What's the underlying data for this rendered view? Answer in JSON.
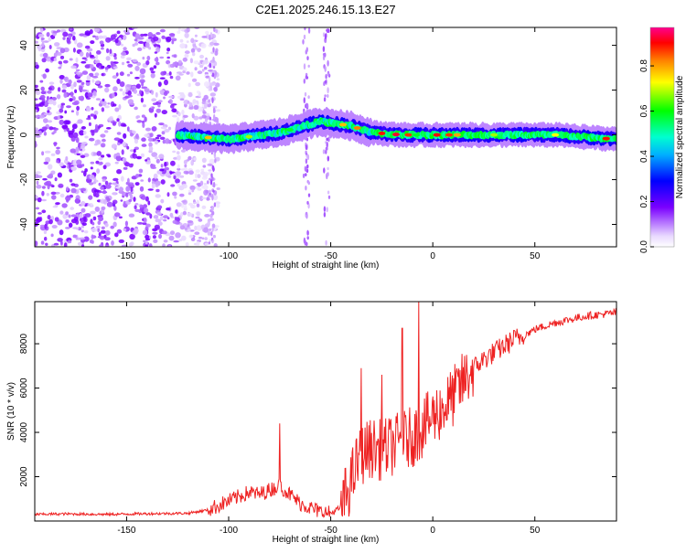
{
  "page_title": "C2E1.2025.246.15.13.E27",
  "chart_data": [
    {
      "type": "heatmap",
      "title": "C2E1.2025.246.15.13.E27",
      "xlabel": "Height of straight line (km)",
      "ylabel": "Frequency (Hz)",
      "xlim": [
        -195,
        90
      ],
      "ylim": [
        -50,
        48
      ],
      "x_ticks": [
        -150,
        -100,
        -50,
        0,
        50
      ],
      "y_ticks": [
        -40,
        -20,
        0,
        20,
        40
      ],
      "colorbar": {
        "label": "Normalized spectral amplitude",
        "range": [
          0,
          0.97
        ],
        "ticks": [
          0.0,
          0.2,
          0.4,
          0.6,
          0.8
        ],
        "tick_labels": [
          "0.0",
          "0.2",
          "0.4",
          "0.6",
          "0.8"
        ],
        "colormap": "rainbow (white → purple → blue → cyan → green → yellow → orange → red → pink)"
      },
      "features": [
        {
          "name": "Scattered noise",
          "x_range": [
            -195,
            -105
          ],
          "y_range": [
            -50,
            48
          ],
          "amplitude": 0.15
        },
        {
          "name": "Ridge signal",
          "x_range": [
            -125,
            90
          ],
          "center_freq_hz": [
            [
              -125,
              0
            ],
            [
              -100,
              -2
            ],
            [
              -75,
              1
            ],
            [
              -55,
              6
            ],
            [
              -40,
              4
            ],
            [
              -30,
              1
            ],
            [
              -15,
              0
            ],
            [
              0,
              0
            ],
            [
              30,
              0
            ],
            [
              60,
              0
            ],
            [
              90,
              -2
            ]
          ],
          "peak_amplitude": 0.95
        }
      ]
    },
    {
      "type": "line",
      "xlabel": "Height of straight line (km)",
      "ylabel": "SNR (10 * v/v)",
      "xlim": [
        -195,
        90
      ],
      "ylim": [
        0,
        9900
      ],
      "x_ticks": [
        -150,
        -100,
        -50,
        0,
        50
      ],
      "y_ticks": [
        2000,
        4000,
        6000,
        8000
      ],
      "series": [
        {
          "name": "SNR",
          "color": "#ee2222",
          "x": [
            -195,
            -180,
            -160,
            -140,
            -120,
            -110,
            -105,
            -100,
            -95,
            -90,
            -85,
            -80,
            -75,
            -70,
            -65,
            -60,
            -55,
            -50,
            -45,
            -40,
            -37,
            -35,
            -30,
            -25,
            -20,
            -15,
            -10,
            -5,
            0,
            5,
            10,
            15,
            20,
            25,
            30,
            35,
            40,
            45,
            50,
            55,
            60,
            65,
            70,
            75,
            80,
            85,
            90
          ],
          "values": [
            300,
            320,
            300,
            330,
            350,
            500,
            700,
            900,
            1100,
            1300,
            1200,
            1400,
            1600,
            1200,
            800,
            600,
            400,
            350,
            600,
            1800,
            2600,
            3000,
            3300,
            3200,
            3400,
            3600,
            3800,
            4200,
            4700,
            5100,
            5600,
            6300,
            6900,
            7300,
            7600,
            7900,
            8200,
            8400,
            8650,
            8800,
            8950,
            9050,
            9150,
            9250,
            9300,
            9350,
            9400
          ]
        }
      ],
      "annotations_peaks": [
        {
          "x": -75,
          "value": 4400
        },
        {
          "x": -35,
          "value": 6900
        },
        {
          "x": -25,
          "value": 6600
        },
        {
          "x": -15,
          "value": 8700
        },
        {
          "x": -7,
          "value": 9900
        }
      ]
    }
  ]
}
